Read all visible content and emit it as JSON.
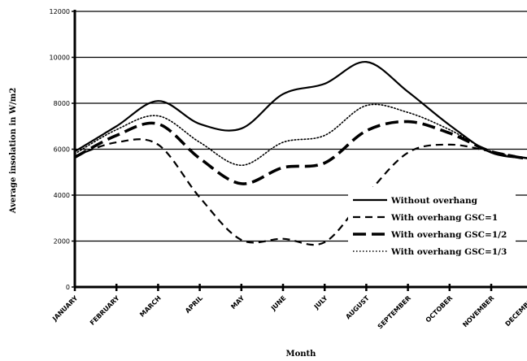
{
  "chart_data": {
    "type": "line",
    "xlabel": "Month",
    "ylabel": "Average insolation in W/m2",
    "categories": [
      "JANUARY",
      "FEBRUARY",
      "MARCH",
      "APRIL",
      "MAY",
      "JUNE",
      "JULY",
      "AUGUST",
      "SEPTEMBER",
      "OCTOBER",
      "NOVEMBER",
      "DECEMBER"
    ],
    "ylim": [
      0,
      12000
    ],
    "yticks": [
      "0",
      "2000",
      "4000",
      "6000",
      "8000",
      "10000",
      "12000"
    ],
    "grid": true,
    "legend_position": "lower-right",
    "series": [
      {
        "name": "Without overhang",
        "dash": "solid",
        "values": [
          5900,
          7000,
          8100,
          7100,
          6900,
          8400,
          8850,
          9800,
          8500,
          7050,
          5850,
          5600
        ]
      },
      {
        "name": "With overhang GSC=1",
        "dash": "dashed",
        "values": [
          5700,
          6300,
          6200,
          3900,
          2050,
          2100,
          1950,
          4000,
          5850,
          6200,
          5900,
          5550
        ]
      },
      {
        "name": "With overhang GSC=1/2",
        "dash": "longdash",
        "values": [
          5650,
          6600,
          7100,
          5600,
          4500,
          5200,
          5400,
          6800,
          7200,
          6700,
          5900,
          5550
        ]
      },
      {
        "name": "With overhang GSC=1/3",
        "dash": "dotted",
        "values": [
          5800,
          6850,
          7450,
          6300,
          5300,
          6300,
          6600,
          7900,
          7600,
          6850,
          5900,
          5600
        ]
      }
    ]
  }
}
